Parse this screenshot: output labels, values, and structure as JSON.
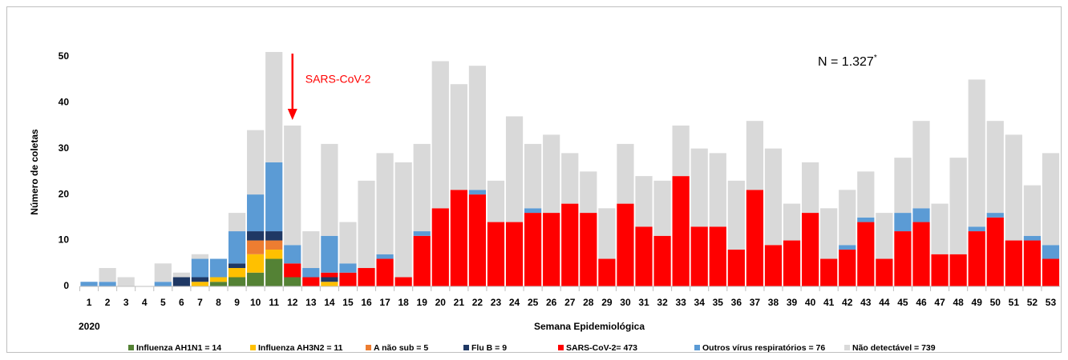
{
  "chart_data": {
    "type": "stacked-bar",
    "y_label": "Número de coletas",
    "x_label": "Semana Epidemiológica",
    "year_label": "2020",
    "annotation": "SARS-CoV-2",
    "total_note": {
      "text": "N = 1.327",
      "sup": "*"
    },
    "categories": [
      "1",
      "2",
      "3",
      "4",
      "5",
      "6",
      "7",
      "8",
      "9",
      "10",
      "11",
      "12",
      "13",
      "14",
      "15",
      "16",
      "17",
      "18",
      "19",
      "20",
      "21",
      "22",
      "23",
      "24",
      "25",
      "26",
      "27",
      "28",
      "29",
      "30",
      "31",
      "32",
      "33",
      "34",
      "35",
      "36",
      "37",
      "38",
      "39",
      "40",
      "41",
      "42",
      "43",
      "44",
      "45",
      "46",
      "47",
      "48",
      "49",
      "50",
      "51",
      "52",
      "53"
    ],
    "annotation_category": 11,
    "ylim": [
      0,
      55
    ],
    "yticks": [
      0,
      10,
      20,
      30,
      40,
      50
    ],
    "series": [
      {
        "name": "Influenza AH1N1 = 14",
        "color": "#548235",
        "values": [
          0,
          0,
          0,
          0,
          0,
          0,
          0,
          1,
          2,
          3,
          6,
          2,
          0,
          0,
          0,
          0,
          0,
          0,
          0,
          0,
          0,
          0,
          0,
          0,
          0,
          0,
          0,
          0,
          0,
          0,
          0,
          0,
          0,
          0,
          0,
          0,
          0,
          0,
          0,
          0,
          0,
          0,
          0,
          0,
          0,
          0,
          0,
          0,
          0,
          0,
          0,
          0,
          0
        ]
      },
      {
        "name": "Influenza AH3N2 = 11",
        "color": "#ffc000",
        "values": [
          0,
          0,
          0,
          0,
          0,
          0,
          1,
          1,
          2,
          4,
          2,
          0,
          0,
          1,
          0,
          0,
          0,
          0,
          0,
          0,
          0,
          0,
          0,
          0,
          0,
          0,
          0,
          0,
          0,
          0,
          0,
          0,
          0,
          0,
          0,
          0,
          0,
          0,
          0,
          0,
          0,
          0,
          0,
          0,
          0,
          0,
          0,
          0,
          0,
          0,
          0,
          0,
          0
        ]
      },
      {
        "name": "A não sub =  5",
        "color": "#ed7d31",
        "values": [
          0,
          0,
          0,
          0,
          0,
          0,
          0,
          0,
          0,
          3,
          2,
          0,
          0,
          0,
          0,
          0,
          0,
          0,
          0,
          0,
          0,
          0,
          0,
          0,
          0,
          0,
          0,
          0,
          0,
          0,
          0,
          0,
          0,
          0,
          0,
          0,
          0,
          0,
          0,
          0,
          0,
          0,
          0,
          0,
          0,
          0,
          0,
          0,
          0,
          0,
          0,
          0,
          0
        ]
      },
      {
        "name": "Flu B = 9",
        "color": "#1f3864",
        "values": [
          0,
          0,
          0,
          0,
          0,
          2,
          1,
          0,
          1,
          2,
          2,
          0,
          0,
          1,
          0,
          0,
          0,
          0,
          0,
          0,
          0,
          0,
          0,
          0,
          0,
          0,
          0,
          0,
          0,
          0,
          0,
          0,
          0,
          0,
          0,
          0,
          0,
          0,
          0,
          0,
          0,
          0,
          0,
          0,
          0,
          0,
          0,
          0,
          0,
          0,
          0,
          0,
          0
        ]
      },
      {
        "name": "SARS-CoV-2= 473",
        "color": "#ff0000",
        "values": [
          0,
          0,
          0,
          0,
          0,
          0,
          0,
          0,
          0,
          0,
          0,
          3,
          2,
          1,
          3,
          4,
          6,
          2,
          11,
          17,
          21,
          20,
          14,
          14,
          16,
          16,
          18,
          16,
          6,
          18,
          13,
          11,
          24,
          13,
          13,
          8,
          21,
          9,
          10,
          16,
          6,
          8,
          14,
          6,
          12,
          14,
          7,
          7,
          12,
          15,
          10,
          10,
          6
        ]
      },
      {
        "name": "Outros vírus respiratórios = 76",
        "color": "#5b9bd5",
        "values": [
          1,
          1,
          0,
          0,
          1,
          0,
          4,
          4,
          7,
          8,
          15,
          4,
          2,
          8,
          2,
          0,
          1,
          0,
          1,
          0,
          0,
          1,
          0,
          0,
          1,
          0,
          0,
          0,
          0,
          0,
          0,
          0,
          0,
          0,
          0,
          0,
          0,
          0,
          0,
          0,
          0,
          1,
          1,
          0,
          4,
          3,
          0,
          0,
          1,
          1,
          0,
          1,
          3
        ]
      },
      {
        "name": "Não detectável = 739",
        "color": "#d9d9d9",
        "values": [
          0,
          3,
          2,
          0,
          4,
          1,
          1,
          0,
          4,
          14,
          24,
          26,
          8,
          20,
          9,
          19,
          22,
          25,
          19,
          32,
          23,
          27,
          9,
          23,
          14,
          17,
          11,
          9,
          11,
          13,
          11,
          12,
          11,
          17,
          16,
          15,
          15,
          21,
          8,
          11,
          11,
          12,
          10,
          10,
          12,
          19,
          11,
          21,
          32,
          20,
          23,
          11,
          20
        ]
      }
    ]
  }
}
